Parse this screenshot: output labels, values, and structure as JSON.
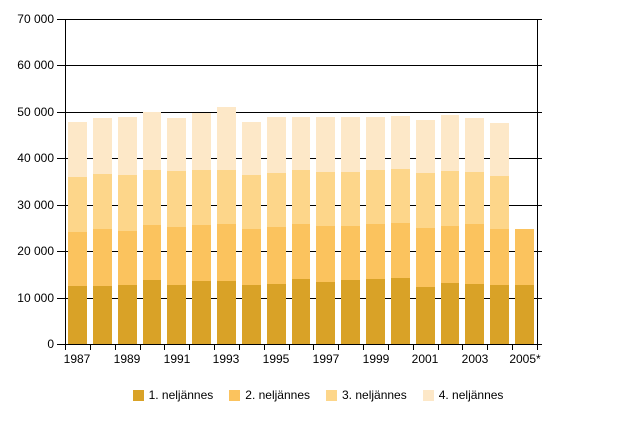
{
  "chart_data": {
    "type": "bar",
    "stacked": true,
    "title": "",
    "xlabel": "",
    "ylabel": "",
    "ylim": [
      0,
      70000
    ],
    "y_tick_step": 10000,
    "y_tick_labels": [
      "0",
      "10 000",
      "20 000",
      "30 000",
      "40 000",
      "50 000",
      "60 000",
      "70 000"
    ],
    "grid": "horizontal",
    "legend_position": "bottom",
    "categories": [
      "1987",
      "1988",
      "1989",
      "1990",
      "1991",
      "1992",
      "1993",
      "1994",
      "1995",
      "1996",
      "1997",
      "1998",
      "1999",
      "2000",
      "2001",
      "2002",
      "2003",
      "2004",
      "2005*"
    ],
    "x_tick_labels": [
      "1987",
      "1989",
      "1991",
      "1993",
      "1995",
      "1997",
      "1999",
      "2001",
      "2003",
      "2005*"
    ],
    "series": [
      {
        "name": "1. neljännes",
        "color": "#D9A227",
        "values": [
          12500,
          12400,
          12800,
          13700,
          12800,
          13600,
          13600,
          12800,
          12900,
          13900,
          13300,
          13700,
          14000,
          14200,
          12300,
          13200,
          13000,
          12700,
          12800
        ]
      },
      {
        "name": "2. neljännes",
        "color": "#FBC35E",
        "values": [
          11600,
          12300,
          11500,
          11900,
          12400,
          12000,
          12200,
          11900,
          12300,
          12000,
          12200,
          11800,
          11800,
          11900,
          12600,
          12200,
          12800,
          12100,
          11900
        ]
      },
      {
        "name": "3. neljännes",
        "color": "#FDD68A",
        "values": [
          11800,
          11900,
          12100,
          11800,
          12000,
          11900,
          11700,
          11700,
          11700,
          11500,
          11600,
          11600,
          11600,
          11700,
          11900,
          11800,
          11300,
          11400,
          0
        ]
      },
      {
        "name": "4. neljännes",
        "color": "#FDE8C8",
        "values": [
          11900,
          12100,
          12400,
          12500,
          11500,
          12200,
          13500,
          11400,
          11900,
          11400,
          11900,
          11900,
          11600,
          11400,
          11400,
          12200,
          11600,
          11500,
          0
        ]
      }
    ],
    "annotations": [],
    "axis_color": "#000000",
    "background_color": "#FFFFFF"
  }
}
